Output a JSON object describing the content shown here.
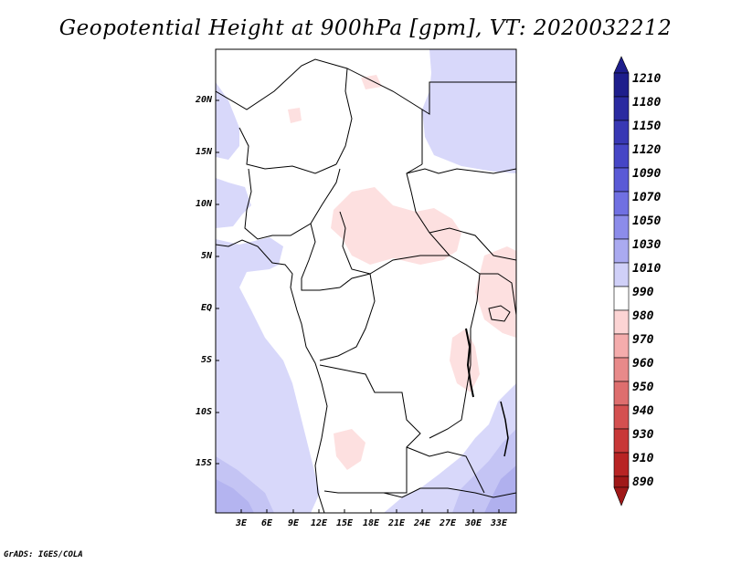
{
  "title": "Geopotential Height at 900hPa [gpm], VT: 2020032212",
  "y_labels": [
    "20N",
    "15N",
    "10N",
    "5N",
    "EQ",
    "5S",
    "10S",
    "15S"
  ],
  "x_labels": [
    "3E",
    "6E",
    "9E",
    "12E",
    "15E",
    "18E",
    "21E",
    "24E",
    "27E",
    "30E",
    "33E"
  ],
  "colorbar": {
    "labels": [
      "1210",
      "1180",
      "1150",
      "1120",
      "1090",
      "1070",
      "1050",
      "1030",
      "1010",
      "990",
      "980",
      "970",
      "960",
      "950",
      "940",
      "930",
      "910",
      "890"
    ],
    "colors": [
      "#1e1e8c",
      "#2a2aa0",
      "#3838b4",
      "#4646c6",
      "#5a5ad6",
      "#7070e2",
      "#8c8cea",
      "#aaaaf0",
      "#d0d0f8",
      "#ffffff",
      "#fcd4d4",
      "#f4acac",
      "#e88a8a",
      "#de6e6e",
      "#d45050",
      "#c83838",
      "#b82424",
      "#a01818"
    ]
  },
  "credit": "GrADS: IGES/COLA"
}
